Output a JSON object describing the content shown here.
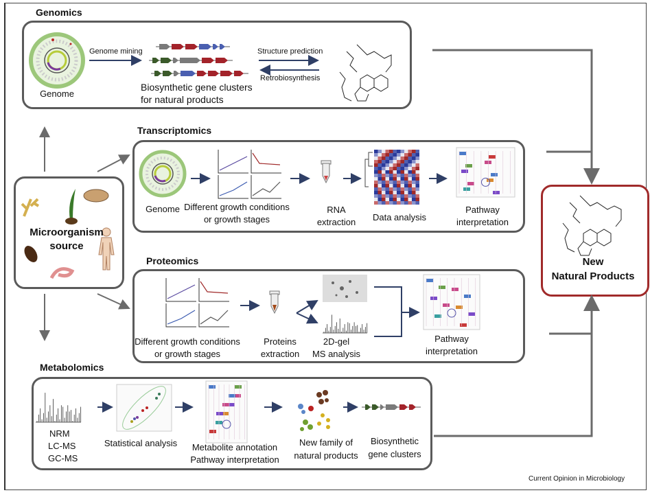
{
  "sections": {
    "genomics": {
      "title": "Genomics",
      "genome_label": "Genome",
      "mining_label": "Genome mining",
      "clusters_label_1": "Biosynthetic gene clusters",
      "clusters_label_2": "for natural products",
      "structure_prediction": "Structure prediction",
      "retrobiosynthesis": "Retrobiosynthesis"
    },
    "transcriptomics": {
      "title": "Transcriptomics",
      "genome_label": "Genome",
      "conditions_1": "Different growth conditions",
      "conditions_2": "or growth stages",
      "rna_1": "RNA",
      "rna_2": "extraction",
      "data_analysis": "Data analysis",
      "pathway_1": "Pathway",
      "pathway_2": "interpretation"
    },
    "proteomics": {
      "title": "Proteomics",
      "conditions_1": "Different growth conditions",
      "conditions_2": "or growth stages",
      "proteins_1": "Proteins",
      "proteins_2": "extraction",
      "gel_1": "2D-gel",
      "gel_2": "MS analysis",
      "pathway_1": "Pathway",
      "pathway_2": "interpretation"
    },
    "metabolomics": {
      "title": "Metabolomics",
      "methods": [
        "NRM",
        "LC-MS",
        "GC-MS"
      ],
      "statistical": "Statistical analysis",
      "annotation_1": "Metabolite annotation",
      "annotation_2": "Pathway interpretation",
      "family_1": "New family of",
      "family_2": "natural products",
      "clusters_1": "Biosynthetic",
      "clusters_2": "gene clusters"
    }
  },
  "source": {
    "label_1": "Microorganism",
    "label_2": "source"
  },
  "result": {
    "label_1": "New",
    "label_2": "Natural Products",
    "border_color": "#a02a2a"
  },
  "colors": {
    "arrow_dark": "#2f3f66",
    "arrow_grey": "#6b6b6b",
    "gene_red": "#a3232a",
    "gene_blue": "#4a5fb0",
    "gene_green": "#3b5a2a",
    "gene_grey": "#7a7a7a"
  },
  "footer": "Current Opinion in Microbiology"
}
